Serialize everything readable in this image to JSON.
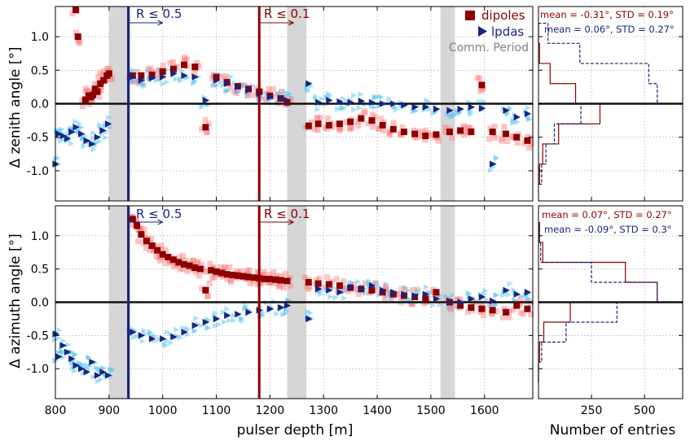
{
  "chart_data": [
    {
      "type": "scatter",
      "panel": "zenith",
      "ylabel": "Δ zenith angle [°]",
      "xlabel": "",
      "xlim": [
        800,
        1690
      ],
      "ylim": [
        -1.45,
        1.45
      ],
      "xticks": [
        "800",
        "900",
        "1000",
        "1100",
        "1200",
        "1300",
        "1400",
        "1500",
        "1600"
      ],
      "yticks": [
        "1.0",
        "0.5",
        "0.0",
        "-0.5",
        "-1.0"
      ],
      "shaded_regions": [
        [
          900,
          940
        ],
        [
          1232,
          1268
        ],
        [
          1518,
          1545
        ]
      ],
      "vlines": [
        {
          "x": 936,
          "color": "#1a237e",
          "label": "R ≤ 0.5"
        },
        {
          "x": 1180,
          "color": "#8b0000",
          "label": "R ≤ 0.1"
        }
      ],
      "legend": [
        {
          "name": "dipoles",
          "marker": "square",
          "color": "#8b0000"
        },
        {
          "name": "lpdas",
          "marker": "triangle-right",
          "color": "#1a237e"
        },
        {
          "name": "Comm. Period",
          "marker": "none",
          "color": "#808080"
        }
      ],
      "series": [
        {
          "name": "dipoles",
          "color": "#8b0000",
          "x": [
            838,
            842,
            856,
            862,
            866,
            870,
            874,
            878,
            884,
            890,
            896,
            900,
            944,
            960,
            980,
            1000,
            1020,
            1040,
            1060,
            1080,
            1100,
            1120,
            1140,
            1160,
            1180,
            1200,
            1220,
            1232,
            1272,
            1290,
            1310,
            1330,
            1350,
            1370,
            1390,
            1410,
            1430,
            1450,
            1470,
            1490,
            1510,
            1535,
            1555,
            1575,
            1595,
            1615,
            1640,
            1660,
            1680
          ],
          "y": [
            1.4,
            1.0,
            0.06,
            0.12,
            0.1,
            0.13,
            0.22,
            0.18,
            0.3,
            0.35,
            0.42,
            0.45,
            0.42,
            0.42,
            0.43,
            0.48,
            0.52,
            0.58,
            0.55,
            -0.35,
            0.4,
            0.32,
            0.26,
            0.22,
            0.18,
            0.12,
            0.08,
            0.02,
            -0.33,
            -0.3,
            -0.32,
            -0.3,
            -0.27,
            -0.22,
            -0.25,
            -0.32,
            -0.38,
            -0.42,
            -0.45,
            -0.48,
            -0.46,
            -0.42,
            -0.4,
            -0.42,
            0.28,
            -0.42,
            -0.45,
            -0.5,
            -0.55
          ]
        },
        {
          "name": "lpdas",
          "color": "#1a237e",
          "x": [
            800,
            806,
            814,
            822,
            830,
            838,
            848,
            858,
            868,
            878,
            888,
            898,
            944,
            960,
            980,
            1000,
            1020,
            1040,
            1060,
            1080,
            1100,
            1120,
            1140,
            1160,
            1180,
            1200,
            1220,
            1232,
            1272,
            1290,
            1310,
            1330,
            1350,
            1370,
            1390,
            1410,
            1430,
            1450,
            1470,
            1490,
            1510,
            1535,
            1555,
            1575,
            1595,
            1615,
            1640,
            1660,
            1680
          ],
          "y": [
            -0.9,
            -0.45,
            -0.48,
            -0.52,
            -0.42,
            -0.35,
            -0.45,
            -0.55,
            -0.6,
            -0.5,
            -0.4,
            -0.3,
            0.4,
            0.35,
            0.38,
            0.4,
            0.45,
            0.42,
            0.4,
            0.05,
            0.35,
            0.3,
            0.25,
            0.2,
            0.15,
            0.1,
            0.08,
            0.05,
            0.3,
            0.02,
            0.05,
            0.03,
            0.02,
            0.04,
            0.02,
            0.0,
            0.0,
            -0.02,
            -0.05,
            -0.05,
            -0.08,
            -0.1,
            -0.08,
            -0.05,
            -0.07,
            -0.9,
            -0.1,
            -0.2,
            -0.15
          ]
        }
      ]
    },
    {
      "type": "scatter",
      "panel": "azimuth",
      "ylabel": "Δ azimuth angle [°]",
      "xlabel": "pulser depth [m]",
      "xlim": [
        800,
        1690
      ],
      "ylim": [
        -1.45,
        1.45
      ],
      "xticks": [
        "800",
        "900",
        "1000",
        "1100",
        "1200",
        "1300",
        "1400",
        "1500",
        "1600"
      ],
      "yticks": [
        "1.0",
        "0.5",
        "0.0",
        "-0.5",
        "-1.0"
      ],
      "shaded_regions": [
        [
          900,
          940
        ],
        [
          1232,
          1268
        ],
        [
          1518,
          1545
        ]
      ],
      "vlines": [
        {
          "x": 936,
          "color": "#1a237e",
          "label": "R ≤ 0.5"
        },
        {
          "x": 1180,
          "color": "#8b0000",
          "label": "R ≤ 0.1"
        }
      ],
      "series": [
        {
          "name": "dipoles",
          "color": "#8b0000",
          "x": [
            944,
            952,
            960,
            970,
            980,
            990,
            1000,
            1010,
            1020,
            1030,
            1040,
            1050,
            1060,
            1070,
            1080,
            1090,
            1100,
            1110,
            1120,
            1130,
            1140,
            1150,
            1160,
            1170,
            1180,
            1190,
            1200,
            1210,
            1220,
            1232,
            1272,
            1290,
            1310,
            1330,
            1350,
            1370,
            1390,
            1410,
            1430,
            1450,
            1470,
            1490,
            1510,
            1535,
            1555,
            1575,
            1595,
            1615,
            1640,
            1660,
            1680
          ],
          "y": [
            1.25,
            1.15,
            1.02,
            0.92,
            0.85,
            0.78,
            0.72,
            0.68,
            0.64,
            0.6,
            0.57,
            0.55,
            0.52,
            0.5,
            0.18,
            0.48,
            0.46,
            0.44,
            0.42,
            0.41,
            0.4,
            0.39,
            0.38,
            0.37,
            0.36,
            0.35,
            0.35,
            0.34,
            0.33,
            0.32,
            0.3,
            0.28,
            0.27,
            0.25,
            0.22,
            0.2,
            0.18,
            0.15,
            0.12,
            0.1,
            0.08,
            0.05,
            0.15,
            0.0,
            -0.05,
            -0.08,
            -0.1,
            -0.12,
            -0.15,
            -0.05,
            -0.1
          ]
        },
        {
          "name": "lpdas",
          "color": "#1a237e",
          "x": [
            800,
            806,
            814,
            822,
            830,
            838,
            848,
            858,
            868,
            878,
            888,
            898,
            944,
            960,
            980,
            1000,
            1020,
            1040,
            1060,
            1080,
            1100,
            1120,
            1140,
            1160,
            1180,
            1200,
            1220,
            1232,
            1272,
            1290,
            1310,
            1330,
            1350,
            1370,
            1390,
            1410,
            1430,
            1450,
            1470,
            1490,
            1510,
            1535,
            1555,
            1575,
            1595,
            1615,
            1640,
            1660,
            1680
          ],
          "y": [
            -0.48,
            -0.82,
            -0.65,
            -0.75,
            -0.85,
            -0.95,
            -1.0,
            -1.05,
            -0.9,
            -1.1,
            -1.05,
            -1.1,
            -0.45,
            -0.5,
            -0.55,
            -0.55,
            -0.52,
            -0.45,
            -0.35,
            -0.3,
            -0.25,
            -0.2,
            -0.18,
            -0.15,
            -0.12,
            -0.1,
            -0.08,
            -0.05,
            -0.25,
            0.2,
            0.18,
            0.15,
            0.22,
            0.2,
            0.25,
            0.18,
            0.15,
            0.12,
            0.1,
            0.12,
            0.05,
            0.02,
            0.0,
            0.05,
            0.08,
            0.02,
            0.18,
            0.12,
            0.15
          ]
        }
      ]
    },
    {
      "type": "histogram",
      "panel": "zenith-histogram",
      "orientation": "horizontal",
      "annotations": [
        {
          "text": "mean = -0.31°, STD = 0.19°",
          "color": "#8b0000"
        },
        {
          "text": "mean = 0.06°, STD = 0.27°",
          "color": "#1a237e"
        }
      ],
      "bins": [
        -1.2,
        -0.9,
        -0.6,
        -0.3,
        0.0,
        0.3,
        0.6,
        0.9,
        1.2
      ],
      "series": [
        {
          "name": "dipoles",
          "color": "#8b0000",
          "linestyle": "solid",
          "counts": [
            5,
            20,
            95,
            290,
            175,
            55,
            5,
            0
          ]
        },
        {
          "name": "lpdas",
          "color": "#1a237e",
          "linestyle": "dashed",
          "counts": [
            15,
            35,
            75,
            200,
            560,
            520,
            195,
            45
          ]
        }
      ]
    },
    {
      "type": "histogram",
      "panel": "azimuth-histogram",
      "orientation": "horizontal",
      "xlabel": "Number of entries",
      "xticks": [
        "250",
        "500"
      ],
      "xlim": [
        0,
        680
      ],
      "annotations": [
        {
          "text": "mean = 0.07°, STD = 0.27°",
          "color": "#8b0000"
        },
        {
          "text": "mean = -0.09°, STD = 0.3°",
          "color": "#1a237e"
        }
      ],
      "bins": [
        -1.2,
        -0.9,
        -0.6,
        -0.3,
        0.0,
        0.3,
        0.6,
        0.9,
        1.2
      ],
      "series": [
        {
          "name": "dipoles",
          "color": "#8b0000",
          "linestyle": "solid",
          "counts": [
            0,
            5,
            25,
            150,
            560,
            410,
            20,
            5
          ]
        },
        {
          "name": "lpdas",
          "color": "#1a237e",
          "linestyle": "dashed",
          "counts": [
            0,
            15,
            130,
            370,
            560,
            250,
            10,
            5
          ]
        }
      ]
    }
  ]
}
